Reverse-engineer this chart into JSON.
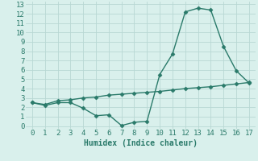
{
  "x": [
    0,
    1,
    2,
    3,
    4,
    5,
    6,
    7,
    8,
    9,
    10,
    11,
    12,
    13,
    14,
    15,
    16,
    17
  ],
  "line1": [
    2.5,
    2.2,
    2.5,
    2.5,
    1.9,
    1.1,
    1.2,
    0.05,
    0.4,
    0.5,
    5.5,
    7.7,
    12.2,
    12.6,
    12.4,
    8.5,
    5.9,
    4.6
  ],
  "line2": [
    2.5,
    2.3,
    2.7,
    2.8,
    3.0,
    3.1,
    3.3,
    3.4,
    3.5,
    3.6,
    3.7,
    3.85,
    4.0,
    4.1,
    4.2,
    4.35,
    4.5,
    4.65
  ],
  "line_color": "#2a7a6a",
  "bg_color": "#d9f0ec",
  "grid_color": "#c0ddd8",
  "xlabel": "Humidex (Indice chaleur)",
  "xlim": [
    -0.5,
    17.5
  ],
  "ylim": [
    -0.3,
    13.3
  ],
  "xticks": [
    0,
    1,
    2,
    3,
    4,
    5,
    6,
    7,
    8,
    9,
    10,
    11,
    12,
    13,
    14,
    15,
    16,
    17
  ],
  "yticks": [
    0,
    1,
    2,
    3,
    4,
    5,
    6,
    7,
    8,
    9,
    10,
    11,
    12,
    13
  ],
  "marker": "D",
  "markersize": 2.5,
  "linewidth": 1.0,
  "xlabel_fontsize": 7,
  "tick_fontsize": 6.5
}
